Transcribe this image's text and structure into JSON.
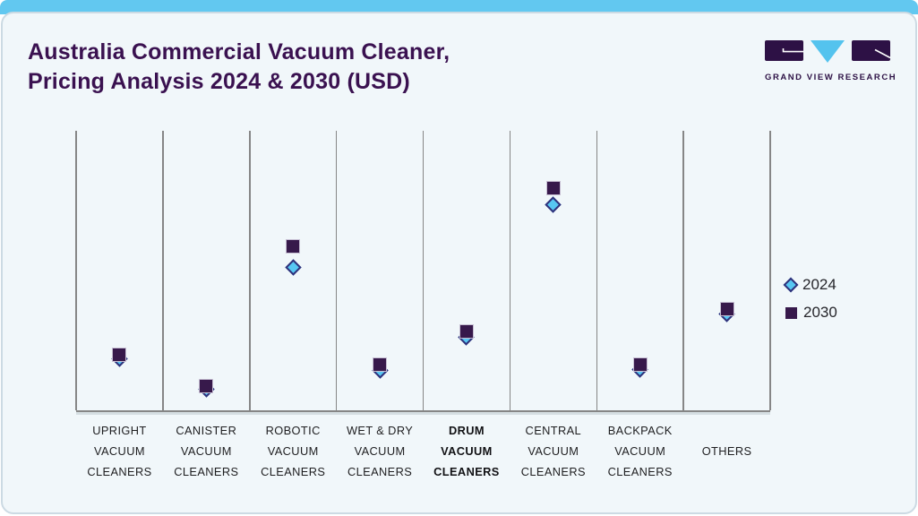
{
  "header": {
    "title_line1": "Australia Commercial Vacuum Cleaner,",
    "title_line2": "Pricing Analysis 2024 & 2030 (USD)",
    "logo_text": "GRAND VIEW RESEARCH"
  },
  "legend": {
    "items": [
      {
        "label": "2024",
        "marker": "diamond"
      },
      {
        "label": "2030",
        "marker": "square"
      }
    ]
  },
  "colors": {
    "accent_bar": "#62c8f0",
    "card_background": "#f1f7fa",
    "card_border": "#ccdae3",
    "title_text": "#3a1150",
    "marker_2024_fill": "#57c7f2",
    "marker_2024_border": "#30307a",
    "marker_2030_fill": "#37194b",
    "gridline": "#868686",
    "axis_label_text": "#1e1e20",
    "logo_purple": "#2d1145",
    "logo_blue": "#54c3ee"
  },
  "chart_data": {
    "type": "scatter",
    "title": "Australia Commercial Vacuum Cleaner, Pricing Analysis 2024 & 2030 (USD)",
    "x_axis": {
      "label": "",
      "categories": [
        {
          "lines": [
            "UPRIGHT",
            "VACUUM",
            "CLEANERS"
          ],
          "bold": false
        },
        {
          "lines": [
            "CANISTER",
            "VACUUM",
            "CLEANERS"
          ],
          "bold": false
        },
        {
          "lines": [
            "ROBOTIC",
            "VACUUM",
            "CLEANERS"
          ],
          "bold": false
        },
        {
          "lines": [
            "WET & DRY",
            "VACUUM",
            "CLEANERS"
          ],
          "bold": false
        },
        {
          "lines": [
            "DRUM",
            "VACUUM",
            "CLEANERS"
          ],
          "bold": true
        },
        {
          "lines": [
            "CENTRAL",
            "VACUUM",
            "CLEANERS"
          ],
          "bold": false
        },
        {
          "lines": [
            "BACKPACK",
            "VACUUM",
            "CLEANERS"
          ],
          "bold": false
        },
        {
          "lines": [
            "OTHERS"
          ],
          "bold": false
        }
      ]
    },
    "y_axis": {
      "label": "",
      "tick_labels_visible": false,
      "range": [
        0,
        1
      ],
      "note": "no numeric price scale shown; values are relative marker heights (0 = baseline, 1 = plot top)"
    },
    "series": [
      {
        "name": "2024",
        "marker": "diamond",
        "color": "#57c7f2",
        "values": [
          0.185,
          0.075,
          0.51,
          0.143,
          0.262,
          0.737,
          0.145,
          0.343
        ]
      },
      {
        "name": "2030",
        "marker": "square",
        "color": "#37194b",
        "values": [
          0.2,
          0.085,
          0.585,
          0.165,
          0.281,
          0.795,
          0.163,
          0.362
        ]
      }
    ],
    "grid": {
      "vertical_separators": true,
      "horizontal_lines": false
    },
    "legend_position": "right-middle"
  }
}
